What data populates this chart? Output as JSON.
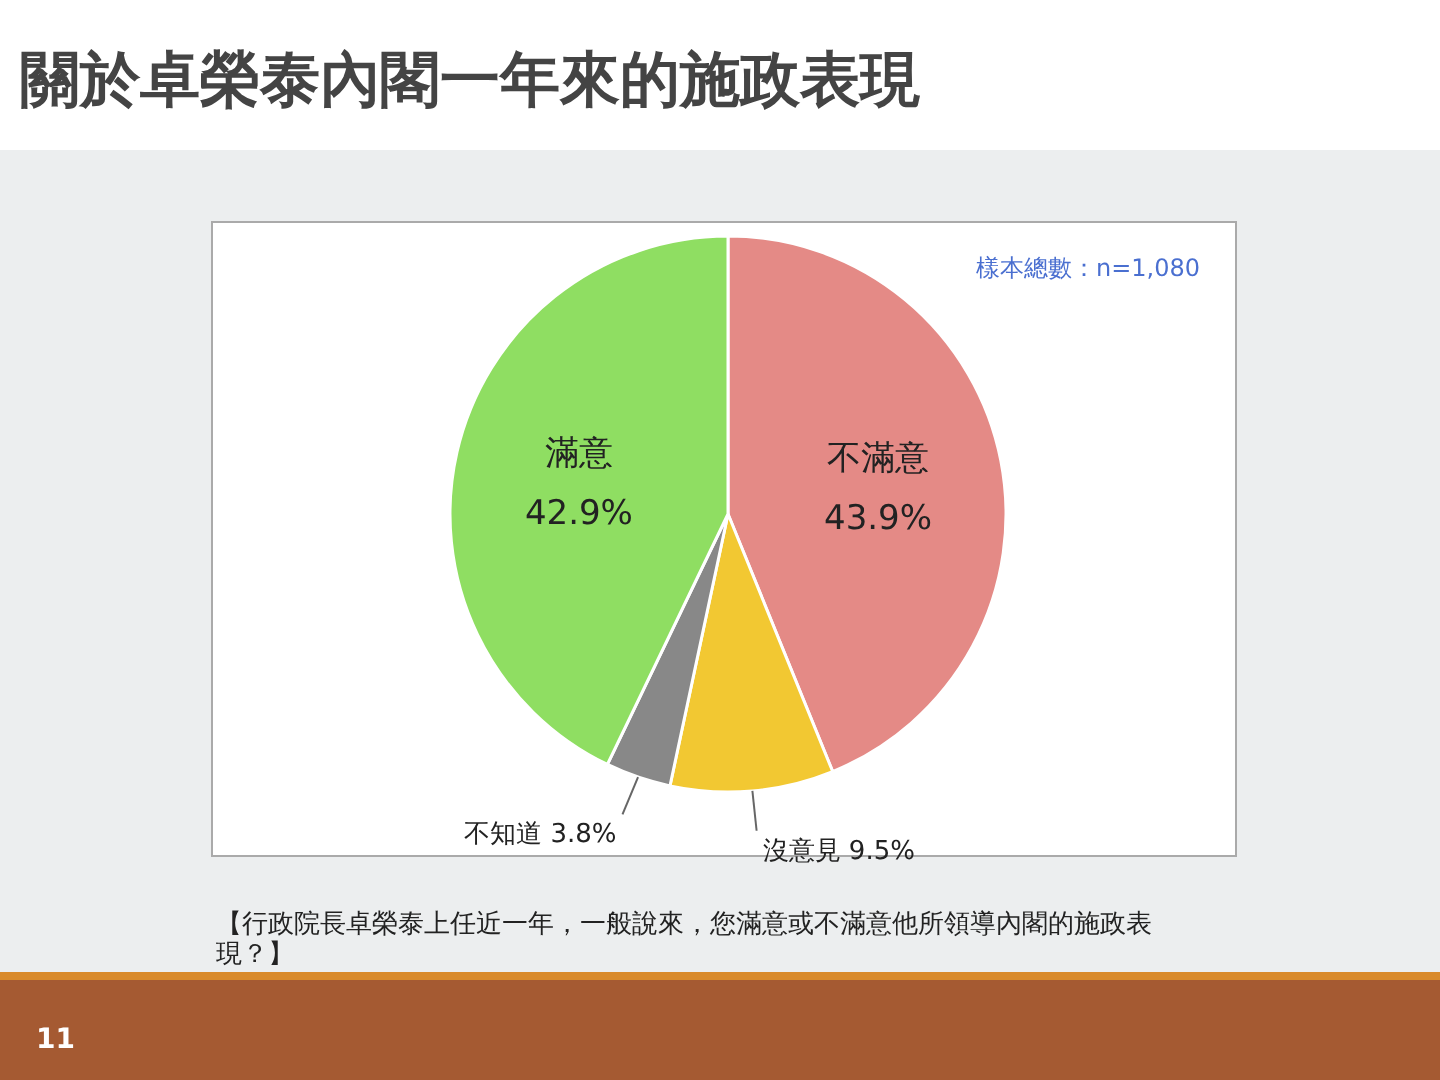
{
  "chart_data": {
    "type": "pie",
    "title": "關於卓榮泰內閣一年來的施政表現",
    "categories": [
      "不滿意",
      "沒意見",
      "不知道",
      "滿意"
    ],
    "values": [
      43.9,
      9.5,
      3.8,
      42.9
    ],
    "value_labels": [
      "43.9%",
      "9.5%",
      "3.8%",
      "42.9%"
    ],
    "colors": [
      "#e48a86",
      "#f2c832",
      "#888888",
      "#8fde62"
    ],
    "annotations": [
      "樣本總數：n=1,080",
      "【行政院長卓榮泰上任近一年，一般說來，您滿意或不滿意他所領導內閣的施政表現？】",
      "11"
    ]
  }
}
